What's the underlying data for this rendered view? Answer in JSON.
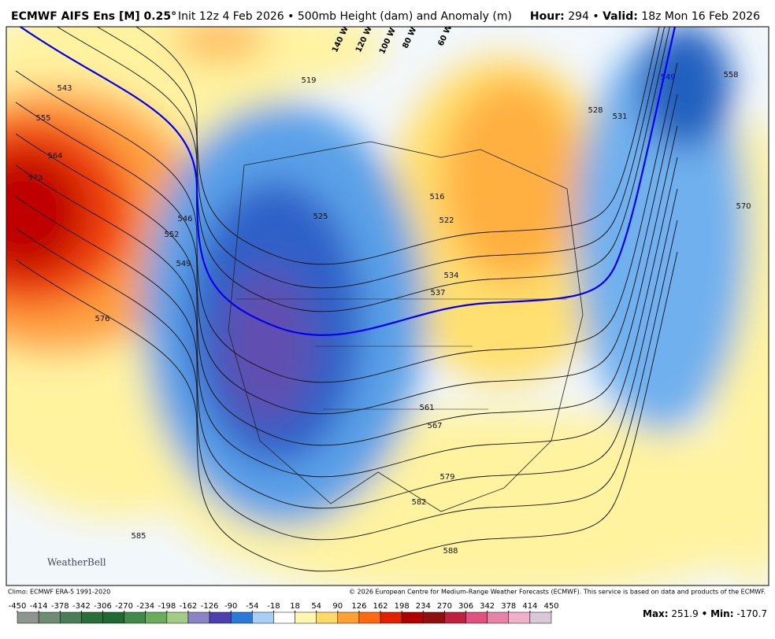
{
  "header": {
    "title_bold": "ECMWF AIFS Ens [M] 0.25°",
    "title_rest": "Init 12z 4 Feb 2026 • 500mb Height (dam) and Anomaly (m)",
    "hour_label": "Hour:",
    "hour_value": "294",
    "separator": "•",
    "valid_label": "Valid:",
    "valid_value": "18z Mon 16 Feb 2026"
  },
  "map": {
    "contour_labels": [
      543,
      555,
      564,
      573,
      576,
      552,
      546,
      549,
      519,
      525,
      516,
      522,
      534,
      537,
      528,
      531,
      549,
      558,
      570,
      561,
      567,
      579,
      582,
      585,
      588
    ],
    "longitude_labels": [
      "140 W",
      "120 W",
      "100 W",
      "80 W",
      "60 W"
    ],
    "watermark": "WeatherBell"
  },
  "footer": {
    "climo": "Climo: ECMWF ERA-5 1991-2020",
    "copyright": "© 2026 European Centre for Medium-Range Weather Forecasts (ECMWF). This service is based on data and products of the ECMWF."
  },
  "colorbar": {
    "ticks": [
      -450,
      -414,
      -378,
      -342,
      -306,
      -270,
      -234,
      -198,
      -162,
      -126,
      -90,
      -54,
      -18,
      18,
      54,
      90,
      126,
      162,
      198,
      234,
      270,
      306,
      342,
      378,
      414,
      450
    ],
    "colors": [
      "#8e948e",
      "#6e8c72",
      "#4a7d55",
      "#2a6e3c",
      "#1e6a32",
      "#3f8a46",
      "#6aab5c",
      "#a3cc86",
      "#8a84c4",
      "#4e3fb0",
      "#2a7ad8",
      "#a8cff5",
      "#ffffff",
      "#fff7b0",
      "#ffd966",
      "#ffa030",
      "#ff6a10",
      "#e02000",
      "#b00000",
      "#901010",
      "#c02040",
      "#e05080",
      "#e883a8",
      "#f0b0c8",
      "#d8c8d8"
    ]
  },
  "stats": {
    "max_label": "Max:",
    "max_value": 251.9,
    "min_label": "Min:",
    "min_value": -170.7
  }
}
